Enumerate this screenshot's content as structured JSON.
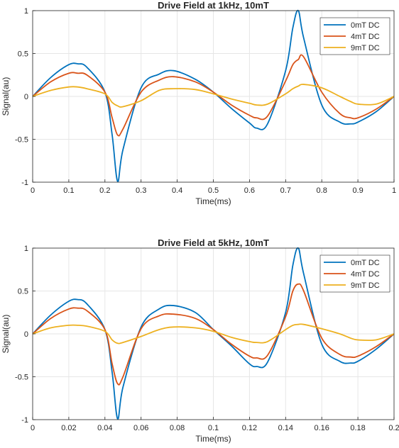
{
  "colors": {
    "series_0": "#0072BD",
    "series_1": "#D95319",
    "series_2": "#EDB120",
    "grid": "#e6e6e6",
    "axis": "#262626"
  },
  "chart_data": [
    {
      "type": "line",
      "title": "Drive Field at 1kHz, 10mT",
      "xlabel": "Time(ms)",
      "ylabel": "Signal(au)",
      "xlim": [
        0,
        1
      ],
      "ylim": [
        -1,
        1
      ],
      "x_ticks": [
        0,
        0.1,
        0.2,
        0.3,
        0.4,
        0.5,
        0.6,
        0.7,
        0.8,
        0.9,
        1
      ],
      "x_tick_labels": [
        "0",
        "0.1",
        "0.2",
        "0.3",
        "0.4",
        "0.5",
        "0.6",
        "0.7",
        "0.8",
        "0.9",
        "1"
      ],
      "y_ticks": [
        -1,
        -0.5,
        0,
        0.5,
        1
      ],
      "y_tick_labels": [
        "-1",
        "-0.5",
        "0",
        "0.5",
        "1"
      ],
      "grid": true,
      "legend_position": "top-right",
      "x": [
        0,
        0.05,
        0.1,
        0.125,
        0.15,
        0.2,
        0.22,
        0.235,
        0.25,
        0.3,
        0.35,
        0.39,
        0.45,
        0.5,
        0.55,
        0.6,
        0.62,
        0.65,
        0.7,
        0.72,
        0.735,
        0.75,
        0.8,
        0.85,
        0.88,
        0.9,
        0.95,
        1
      ],
      "series": [
        {
          "name": "0mT DC",
          "values": [
            0,
            0.22,
            0.37,
            0.38,
            0.34,
            0.05,
            -0.45,
            -0.99,
            -0.62,
            0.1,
            0.26,
            0.3,
            0.2,
            0.05,
            -0.14,
            -0.31,
            -0.37,
            -0.32,
            0.3,
            0.8,
            1.0,
            0.68,
            -0.1,
            -0.3,
            -0.32,
            -0.3,
            -0.18,
            0
          ]
        },
        {
          "name": "4mT DC",
          "values": [
            0,
            0.17,
            0.27,
            0.27,
            0.25,
            0.05,
            -0.25,
            -0.45,
            -0.38,
            0.05,
            0.19,
            0.23,
            0.17,
            0.05,
            -0.1,
            -0.22,
            -0.25,
            -0.23,
            0.18,
            0.37,
            0.43,
            0.46,
            0.05,
            -0.2,
            -0.25,
            -0.25,
            -0.15,
            0
          ]
        },
        {
          "name": "9mT DC",
          "values": [
            0,
            0.07,
            0.11,
            0.11,
            0.09,
            0.03,
            -0.07,
            -0.11,
            -0.12,
            -0.05,
            0.07,
            0.09,
            0.08,
            0.03,
            -0.03,
            -0.08,
            -0.1,
            -0.09,
            0.03,
            0.09,
            0.12,
            0.14,
            0.1,
            0.0,
            -0.06,
            -0.09,
            -0.09,
            0
          ]
        }
      ]
    },
    {
      "type": "line",
      "title": "Drive Field at 5kHz, 10mT",
      "xlabel": "Time(ms)",
      "ylabel": "Signal(au)",
      "xlim": [
        0,
        0.2
      ],
      "ylim": [
        -1,
        1
      ],
      "x_ticks": [
        0,
        0.02,
        0.04,
        0.06,
        0.08,
        0.1,
        0.12,
        0.14,
        0.16,
        0.18,
        0.2
      ],
      "x_tick_labels": [
        "0",
        "0.02",
        "0.04",
        "0.06",
        "0.08",
        "0.1",
        "0.12",
        "0.14",
        "0.16",
        "0.18",
        "0.2"
      ],
      "y_ticks": [
        -1,
        -0.5,
        0,
        0.5,
        1
      ],
      "y_tick_labels": [
        "-1",
        "-0.5",
        "0",
        "0.5",
        "1"
      ],
      "grid": true,
      "legend_position": "top-right",
      "x": [
        0,
        0.01,
        0.02,
        0.025,
        0.03,
        0.04,
        0.044,
        0.047,
        0.05,
        0.06,
        0.07,
        0.078,
        0.09,
        0.1,
        0.11,
        0.12,
        0.124,
        0.13,
        0.14,
        0.144,
        0.147,
        0.15,
        0.16,
        0.17,
        0.176,
        0.18,
        0.19,
        0.2
      ],
      "series": [
        {
          "name": "0mT DC",
          "values": [
            0,
            0.22,
            0.38,
            0.4,
            0.35,
            0.05,
            -0.45,
            -0.99,
            -0.62,
            0.08,
            0.29,
            0.33,
            0.25,
            0.05,
            -0.14,
            -0.35,
            -0.38,
            -0.33,
            0.25,
            0.8,
            1.0,
            0.7,
            -0.12,
            -0.32,
            -0.34,
            -0.32,
            -0.18,
            0
          ]
        },
        {
          "name": "4mT DC",
          "values": [
            0,
            0.18,
            0.29,
            0.3,
            0.27,
            0.05,
            -0.35,
            -0.58,
            -0.5,
            0.06,
            0.21,
            0.23,
            0.18,
            0.05,
            -0.12,
            -0.26,
            -0.28,
            -0.25,
            0.2,
            0.5,
            0.58,
            0.5,
            -0.05,
            -0.24,
            -0.27,
            -0.26,
            -0.15,
            0
          ]
        },
        {
          "name": "9mT DC",
          "values": [
            0,
            0.07,
            0.1,
            0.1,
            0.09,
            0.03,
            -0.07,
            -0.11,
            -0.1,
            -0.03,
            0.05,
            0.08,
            0.07,
            0.03,
            -0.04,
            -0.09,
            -0.1,
            -0.09,
            0.05,
            0.1,
            0.11,
            0.11,
            0.06,
            0.0,
            -0.05,
            -0.07,
            -0.07,
            0
          ]
        }
      ]
    }
  ]
}
